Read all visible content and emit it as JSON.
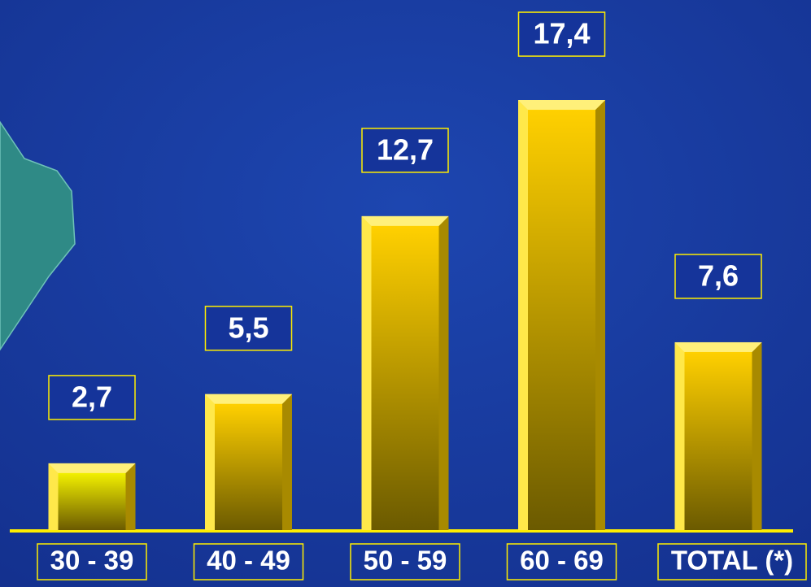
{
  "chart_data": {
    "type": "bar",
    "categories": [
      "30 - 39",
      "40 - 49",
      "50 - 59",
      "60 - 69",
      "TOTAL (*)"
    ],
    "values": [
      2.7,
      5.5,
      12.7,
      17.4,
      7.6
    ],
    "value_labels": [
      "2,7",
      "5,5",
      "12,7",
      "17,4",
      "7,6"
    ],
    "colors": [
      "#f2f000",
      "#ffd000",
      "#ffd000",
      "#ffd000",
      "#ffd000"
    ]
  }
}
